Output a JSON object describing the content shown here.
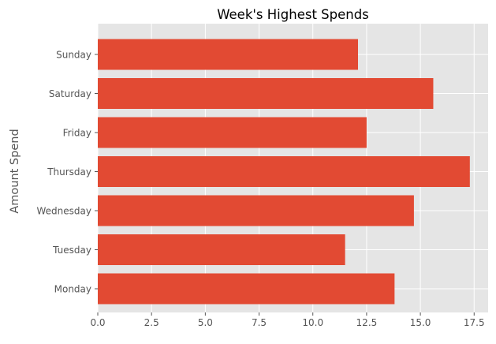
{
  "chart_data": {
    "type": "bar",
    "orientation": "horizontal",
    "title": "Week's Highest Spends",
    "categories": [
      "Monday",
      "Tuesday",
      "Wednesday",
      "Thursday",
      "Friday",
      "Saturday",
      "Sunday"
    ],
    "values": [
      13.8,
      11.5,
      14.7,
      17.3,
      12.5,
      15.6,
      12.1
    ],
    "xlabel": "",
    "ylabel": "Amount Spend",
    "xlim": [
      0,
      18.15
    ],
    "xticks": [
      "0.0",
      "2.5",
      "5.0",
      "7.5",
      "10.0",
      "12.5",
      "15.0",
      "17.5"
    ],
    "xtick_values": [
      0,
      2.5,
      5,
      7.5,
      10,
      12.5,
      15,
      17.5
    ],
    "grid": true,
    "style": "ggplot",
    "colors": {
      "bar": "#E24A33",
      "plot_background": "#E5E5E5",
      "grid": "#FFFFFF",
      "tick_text": "#555555",
      "title_text": "#000000"
    }
  }
}
